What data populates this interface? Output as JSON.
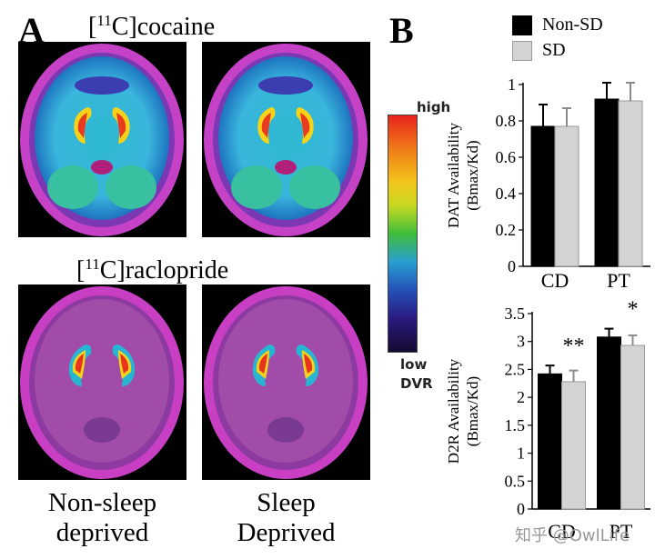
{
  "panel_a": {
    "letter": "A",
    "tracer_top": {
      "prefix": "[",
      "mass": "11",
      "rest": "C]cocaine"
    },
    "tracer_bottom": {
      "prefix": "[",
      "mass": "11",
      "rest": "C]raclopride"
    },
    "groups": [
      {
        "line1": "Non-sleep",
        "line2": "deprived"
      },
      {
        "line1": "Sleep",
        "line2": "Deprived"
      }
    ]
  },
  "colorbar": {
    "high": "high",
    "low": "low",
    "unit": "DVR"
  },
  "panel_b": {
    "letter": "B",
    "legend": [
      "Non-SD",
      "SD"
    ]
  },
  "watermark": "知乎 @OwlLife",
  "chart_data": [
    {
      "type": "bar",
      "categories": [
        "CD",
        "PT"
      ],
      "series": [
        {
          "name": "Non-SD",
          "color": "#000000",
          "values": [
            0.77,
            0.92
          ],
          "errors": [
            0.12,
            0.09
          ]
        },
        {
          "name": "SD",
          "color": "#d3d3d3",
          "values": [
            0.77,
            0.91
          ],
          "errors": [
            0.1,
            0.1
          ]
        }
      ],
      "ylabel": [
        "DAT  Availability",
        "(Bmax/Kd)"
      ],
      "ylim": [
        0,
        1
      ],
      "yticks": [
        0,
        0.2,
        0.4,
        0.6,
        0.8,
        1
      ],
      "ytick_labels": [
        "0",
        "0.2",
        "0.4",
        "0.6",
        "0.8",
        "1"
      ],
      "annotations": [
        "",
        ""
      ]
    },
    {
      "type": "bar",
      "categories": [
        "CD",
        "PT"
      ],
      "series": [
        {
          "name": "Non-SD",
          "color": "#000000",
          "values": [
            2.42,
            3.08
          ],
          "errors": [
            0.15,
            0.15
          ]
        },
        {
          "name": "SD",
          "color": "#d3d3d3",
          "values": [
            2.28,
            2.93
          ],
          "errors": [
            0.2,
            0.18
          ]
        }
      ],
      "ylabel": [
        "D2R Availability",
        "(Bmax/Kd)"
      ],
      "ylim": [
        0,
        3.5
      ],
      "yticks": [
        0,
        0.5,
        1,
        1.5,
        2,
        2.5,
        3,
        3.5
      ],
      "ytick_labels": [
        "0",
        "0.5",
        "1",
        "1.5",
        "2",
        "2.5",
        "3",
        "3.5"
      ],
      "annotations": [
        "**",
        "*"
      ]
    }
  ]
}
